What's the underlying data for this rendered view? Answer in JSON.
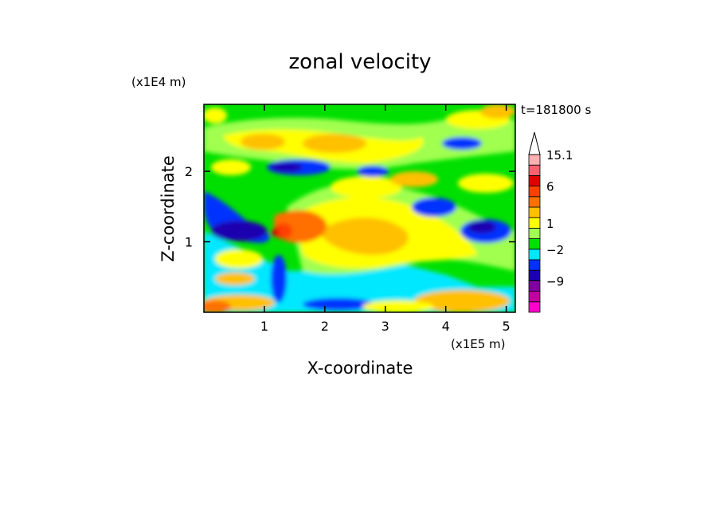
{
  "chart_data": {
    "type": "heatmap",
    "title": "zonal velocity",
    "xlabel": "X-coordinate",
    "ylabel": "Z-coordinate",
    "x_unit": "(x1E5 m)",
    "y_unit": "(x1E4 m)",
    "time_label": "t=181800 s",
    "xlim": [
      0,
      5.15
    ],
    "ylim": [
      0,
      2.95
    ],
    "x_ticks": [
      {
        "value": 1,
        "label": "1"
      },
      {
        "value": 2,
        "label": "2"
      },
      {
        "value": 3,
        "label": "3"
      },
      {
        "value": 4,
        "label": "4"
      },
      {
        "value": 5,
        "label": "5"
      }
    ],
    "y_ticks": [
      {
        "value": 1,
        "label": "1"
      },
      {
        "value": 2,
        "label": "2"
      }
    ],
    "colorbar": {
      "bands": [
        {
          "color": "#ff00cc"
        },
        {
          "color": "#c000a0"
        },
        {
          "color": "#8000a0"
        },
        {
          "color": "#1a00b0"
        },
        {
          "color": "#0030ff"
        },
        {
          "color": "#00e8ff"
        },
        {
          "color": "#00e000"
        },
        {
          "color": "#a0ff50"
        },
        {
          "color": "#ffff00"
        },
        {
          "color": "#ffc000"
        },
        {
          "color": "#ff7000"
        },
        {
          "color": "#ff4000"
        },
        {
          "color": "#e00000"
        },
        {
          "color": "#ff6070"
        },
        {
          "color": "#ffb0b0"
        }
      ],
      "labels": [
        {
          "text": "15.1",
          "at_band": 15
        },
        {
          "text": "6",
          "at_band": 12
        },
        {
          "text": "1",
          "at_band": 8.5
        },
        {
          "text": "−2",
          "at_band": 6
        },
        {
          "text": "−9",
          "at_band": 3
        }
      ]
    },
    "field_description_levels": [
      -12,
      -9,
      -6,
      -4,
      -2,
      -1,
      0,
      1,
      2,
      3,
      4,
      6,
      9,
      12,
      15.1
    ]
  }
}
